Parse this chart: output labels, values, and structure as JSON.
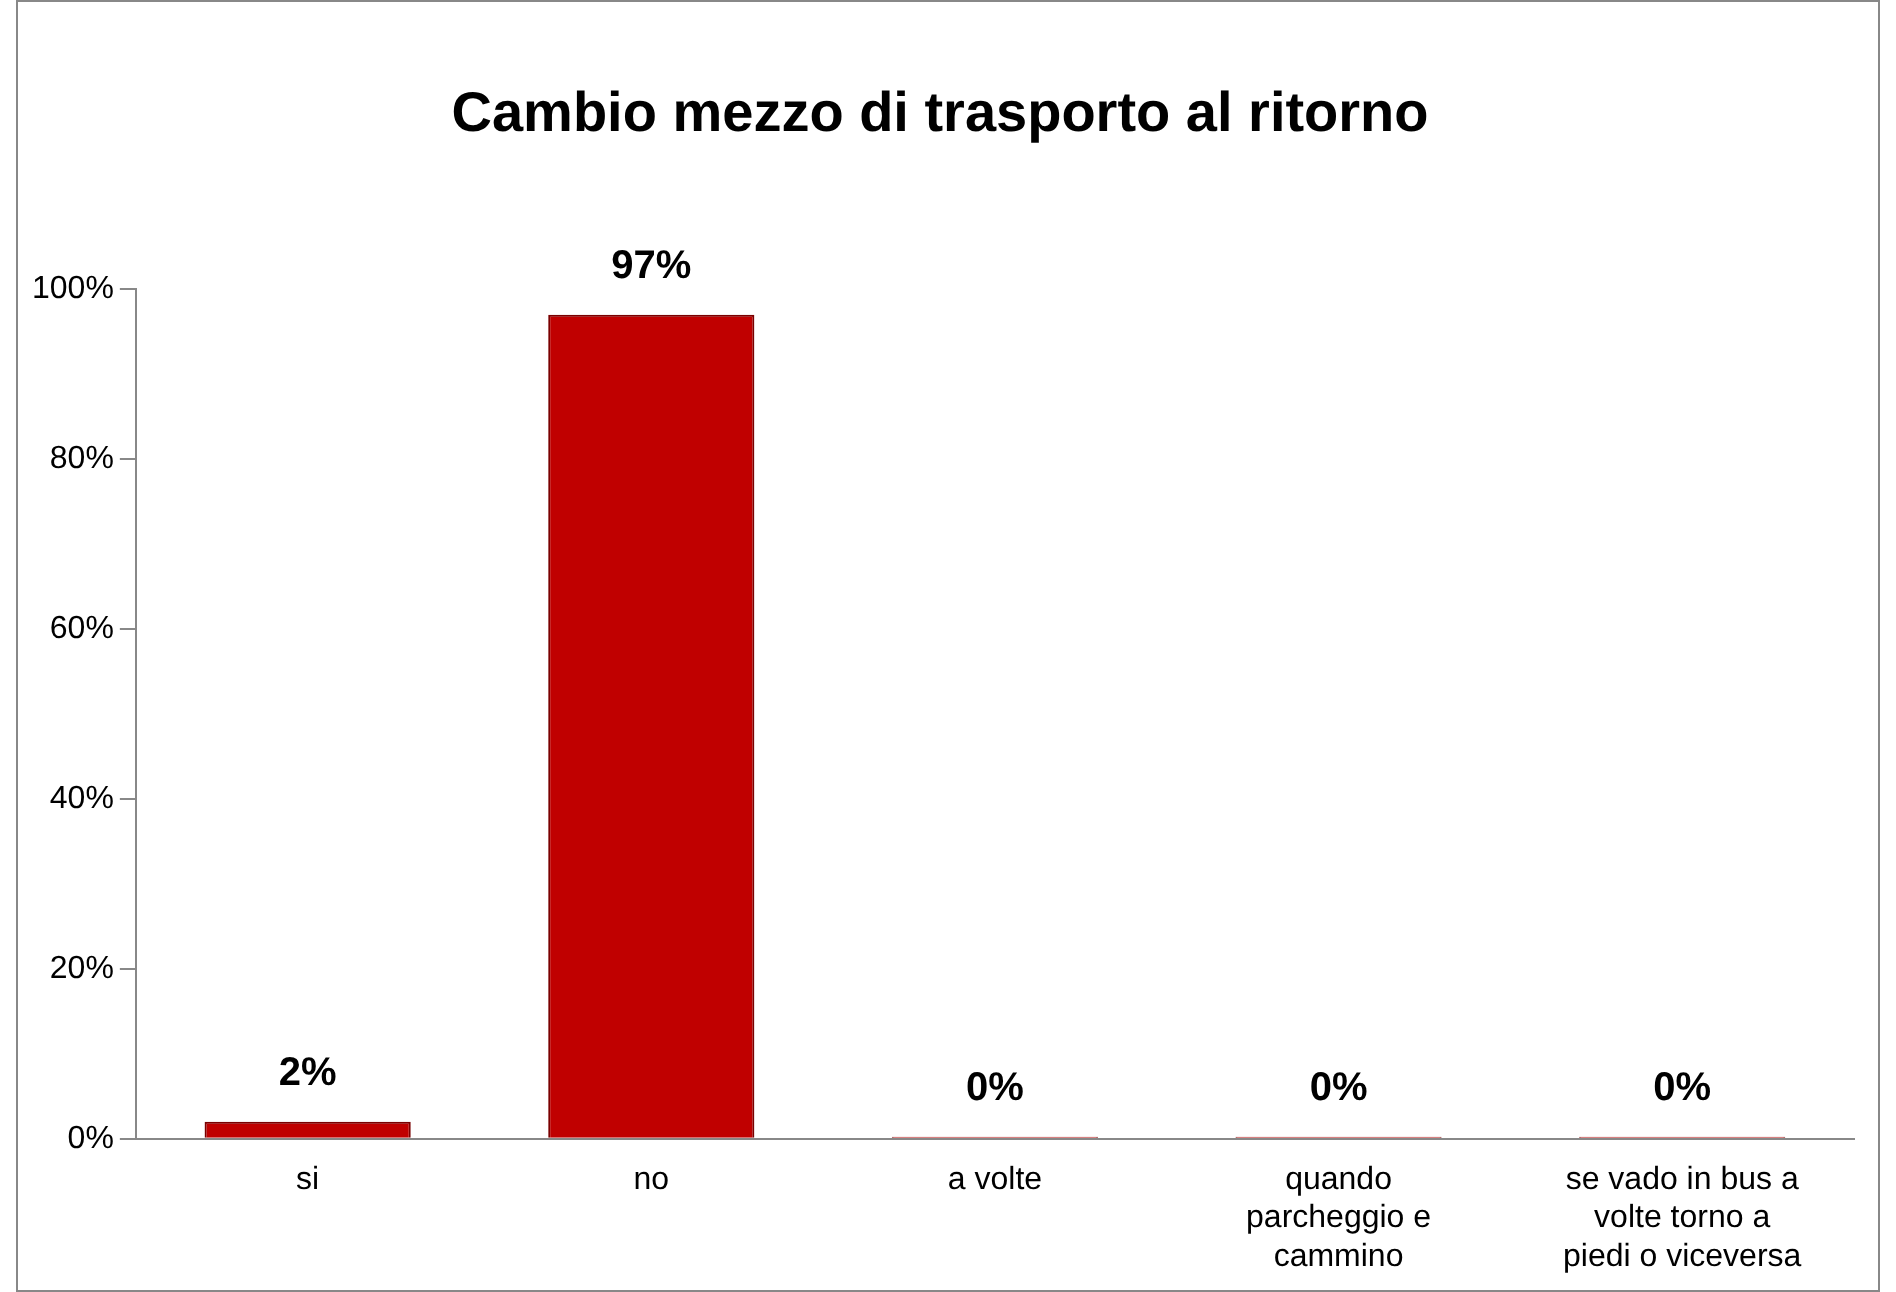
{
  "chart_data": {
    "type": "bar",
    "title": "Cambio mezzo di trasporto al ritorno",
    "categories": [
      "si",
      "no",
      "a volte",
      "quando parcheggio e cammino",
      "se vado in bus a volte torno a piedi o viceversa"
    ],
    "values": [
      2,
      97,
      0,
      0,
      0
    ],
    "value_labels": [
      "2%",
      "97%",
      "0%",
      "0%",
      "0%"
    ],
    "color": "#c00000",
    "ylim": [
      0,
      100
    ],
    "yticks": [
      {
        "value": 0,
        "label": "0%"
      },
      {
        "value": 20,
        "label": "20%"
      },
      {
        "value": 40,
        "label": "40%"
      },
      {
        "value": 60,
        "label": "60%"
      },
      {
        "value": 80,
        "label": "80%"
      },
      {
        "value": 100,
        "label": "100%"
      }
    ],
    "grid": false,
    "legend": false
  }
}
